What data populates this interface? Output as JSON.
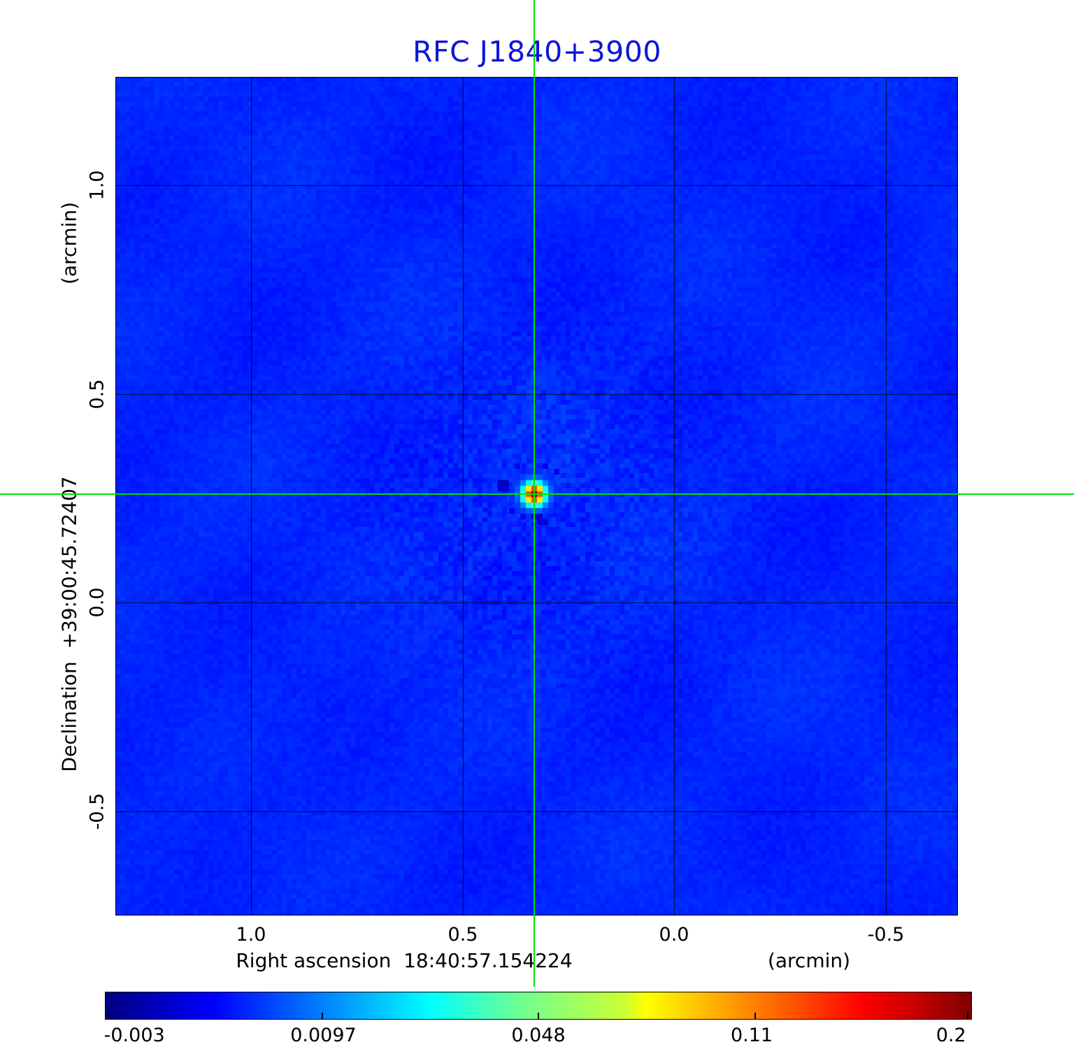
{
  "title": "RFC J1840+3900",
  "colors": {
    "title_blue": "#0b16d8",
    "crosshair_green": "#00df00",
    "map_base_blue": "#0c3fe8",
    "grid_line": "#000000"
  },
  "axes": {
    "x_label": "Right ascension  18:40:57.154224",
    "x_unit": "(arcmin)",
    "x_ticks": [
      "1.0",
      "0.5",
      "0.0",
      "-0.5"
    ],
    "y_label": "Declination  +39:00:45.72407",
    "y_unit": "(arcmin)",
    "y_ticks": [
      "1.0",
      "0.5",
      "0.0",
      "-0.5"
    ]
  },
  "colorbar": {
    "colormap": "jet",
    "ticks": [
      "-0.003",
      "0.0097",
      "0.048",
      "0.11",
      "0.2"
    ]
  },
  "chart_data": {
    "type": "heatmap",
    "title": "RFC J1840+3900",
    "xlabel": "Right ascension 18:40:57.154224 (arcmin)",
    "ylabel": "Declination +39:00:45.72407 (arcmin)",
    "x_tick_values": [
      1.0,
      0.5,
      0.0,
      -0.5
    ],
    "y_tick_values": [
      1.0,
      0.5,
      0.0,
      -0.5
    ],
    "x_range_arcmin": [
      1.32,
      -0.67
    ],
    "y_range_arcmin": [
      -0.75,
      1.26
    ],
    "grid": true,
    "colormap": "jet",
    "colorbar_tick_values": [
      -0.003,
      0.0097,
      0.048,
      0.11,
      0.2
    ],
    "intensity_min": -0.003,
    "intensity_max": 0.2,
    "background_norm": 0.16,
    "source": {
      "ra_offset_arcmin": 0.33,
      "dec_offset_arcmin": 0.26,
      "peak_jy_per_beam": 0.2,
      "sigma_cells": 1.35
    },
    "crosshair": {
      "x_arcmin": 0.33,
      "y_arcmin": 0.26
    }
  }
}
